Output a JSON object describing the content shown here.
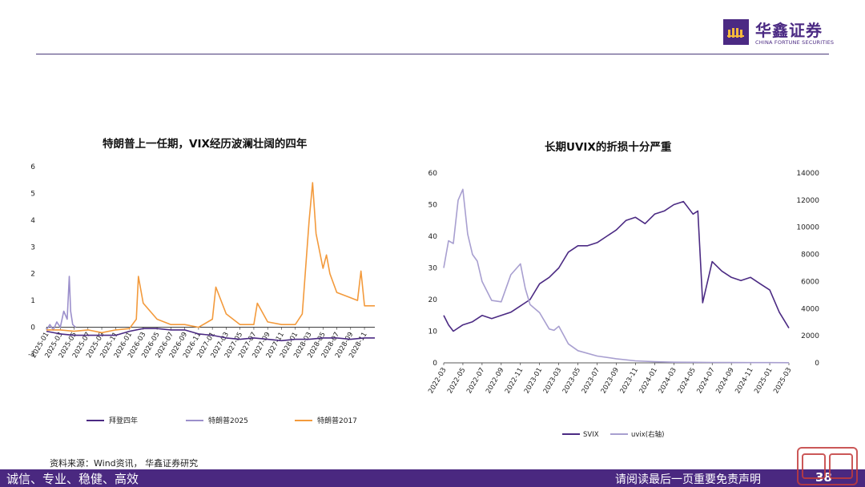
{
  "logo": {
    "name_cn": "华鑫证券",
    "name_en": "CHINA FORTUNE SECURITIES"
  },
  "source": "资料来源：Wind资讯， 华鑫证券研究",
  "footer": {
    "left": "诚信、专业、稳健、高效",
    "right": "请阅读最后一页重要免责声明",
    "page": "38"
  },
  "colors": {
    "brand": "#4a2880",
    "biden": "#4b2a83",
    "trump2025": "#9b8fcb",
    "trump2017": "#f39a3c",
    "svix": "#4b2a83",
    "uvix": "#a89fd0"
  },
  "chart_data": [
    {
      "type": "line",
      "title": "特朗普上一任期，VIX经历波澜壮阔的四年",
      "x_ticks": [
        "2025-01",
        "2025-03",
        "2025-05",
        "2025-07",
        "2025-09",
        "2025-11",
        "2026-01",
        "2026-03",
        "2026-05",
        "2026-07",
        "2026-09",
        "2026-11",
        "2027-01",
        "2027-03",
        "2027-05",
        "2027-07",
        "2027-09",
        "2027-11",
        "2028-01",
        "2028-03",
        "2028-05",
        "2028-07",
        "2028-09",
        "2028-11"
      ],
      "y_ticks": [
        -1,
        0,
        1,
        2,
        3,
        4,
        5,
        6
      ],
      "ylim": [
        -1,
        6
      ],
      "legend_placement": "bottom",
      "series": [
        {
          "name": "拜登四年",
          "x": [
            0,
            2,
            4,
            6,
            8,
            10,
            12,
            14,
            16,
            18,
            20,
            22,
            24,
            26,
            28,
            30,
            32,
            34,
            36,
            38,
            40,
            42,
            44,
            46,
            47.5
          ],
          "values": [
            -0.15,
            -0.25,
            -0.3,
            -0.3,
            -0.3,
            -0.3,
            -0.15,
            -0.05,
            -0.05,
            -0.1,
            -0.1,
            -0.25,
            -0.3,
            -0.4,
            -0.45,
            -0.4,
            -0.45,
            -0.5,
            -0.45,
            -0.45,
            -0.4,
            -0.4,
            -0.45,
            -0.4,
            -0.4
          ]
        },
        {
          "name": "特朗普2025",
          "x": [
            0,
            0.5,
            1,
            1.5,
            2,
            2.5,
            3,
            3.3,
            3.5,
            3.8,
            4.2
          ],
          "values": [
            -0.1,
            0.1,
            -0.1,
            0.2,
            0.0,
            0.6,
            0.3,
            1.9,
            0.6,
            0.1,
            0.0
          ]
        },
        {
          "name": "特朗普2017",
          "x": [
            0,
            2,
            4,
            6,
            8,
            10,
            12,
            13,
            13.3,
            14,
            16,
            18,
            20,
            22,
            24,
            24.5,
            26,
            28,
            30,
            30.5,
            32,
            34,
            36,
            37,
            38,
            38.5,
            39,
            40,
            40.5,
            41,
            42,
            44,
            45,
            45.5,
            46,
            47.5
          ],
          "values": [
            -0.1,
            -0.1,
            -0.15,
            -0.1,
            -0.2,
            -0.1,
            -0.05,
            0.3,
            1.9,
            0.9,
            0.3,
            0.1,
            0.1,
            0.0,
            0.3,
            1.5,
            0.5,
            0.1,
            0.1,
            0.9,
            0.2,
            0.1,
            0.1,
            0.5,
            4.0,
            5.4,
            3.5,
            2.2,
            2.7,
            2.0,
            1.3,
            1.1,
            1.0,
            2.1,
            0.8,
            0.8
          ]
        }
      ]
    },
    {
      "type": "line",
      "title": "长期UVIX的折损十分严重",
      "x_ticks": [
        "2022-03",
        "2022-05",
        "2022-07",
        "2022-09",
        "2022-11",
        "2023-01",
        "2023-03",
        "2023-05",
        "2023-07",
        "2023-09",
        "2023-11",
        "2024-01",
        "2024-03",
        "2024-05",
        "2024-07",
        "2024-09",
        "2024-11",
        "2025-01",
        "2025-03"
      ],
      "y_ticks_left": [
        0,
        10,
        20,
        30,
        40,
        50,
        60
      ],
      "y_ticks_right": [
        0,
        2000,
        4000,
        6000,
        8000,
        10000,
        12000,
        14000
      ],
      "ylim_left": [
        0,
        60
      ],
      "ylim_right": [
        0,
        14000
      ],
      "legend_placement": "bottom",
      "series": [
        {
          "name": "SVIX",
          "axis": "left",
          "x": [
            0,
            0.5,
            1,
            2,
            3,
            4,
            5,
            6,
            7,
            8,
            9,
            10,
            11,
            12,
            13,
            14,
            15,
            16,
            17,
            18,
            19,
            20,
            21,
            22,
            23,
            24,
            25,
            26,
            26.5,
            27,
            28,
            29,
            30,
            31,
            32,
            33,
            34,
            35,
            36
          ],
          "values": [
            15,
            12,
            10,
            12,
            13,
            15,
            14,
            15,
            16,
            18,
            20,
            25,
            27,
            30,
            35,
            37,
            37,
            38,
            40,
            42,
            45,
            46,
            44,
            47,
            48,
            50,
            51,
            47,
            48,
            19,
            32,
            29,
            27,
            26,
            27,
            25,
            23,
            16,
            11
          ]
        },
        {
          "name": "uvix(右轴)",
          "axis": "right",
          "x": [
            0,
            0.5,
            1,
            1.5,
            2,
            2.5,
            3,
            3.5,
            4,
            5,
            6,
            7,
            8,
            8.5,
            9,
            10,
            11,
            11.5,
            12,
            13,
            14,
            16,
            18,
            20,
            22,
            24,
            26,
            28,
            30,
            32,
            34,
            36
          ],
          "values": [
            7000,
            9000,
            8800,
            12000,
            12800,
            9500,
            8000,
            7500,
            6000,
            4600,
            4500,
            6500,
            7300,
            5500,
            4300,
            3700,
            2500,
            2400,
            2700,
            1400,
            900,
            500,
            300,
            150,
            80,
            50,
            40,
            30,
            25,
            20,
            15,
            10
          ]
        }
      ]
    }
  ]
}
